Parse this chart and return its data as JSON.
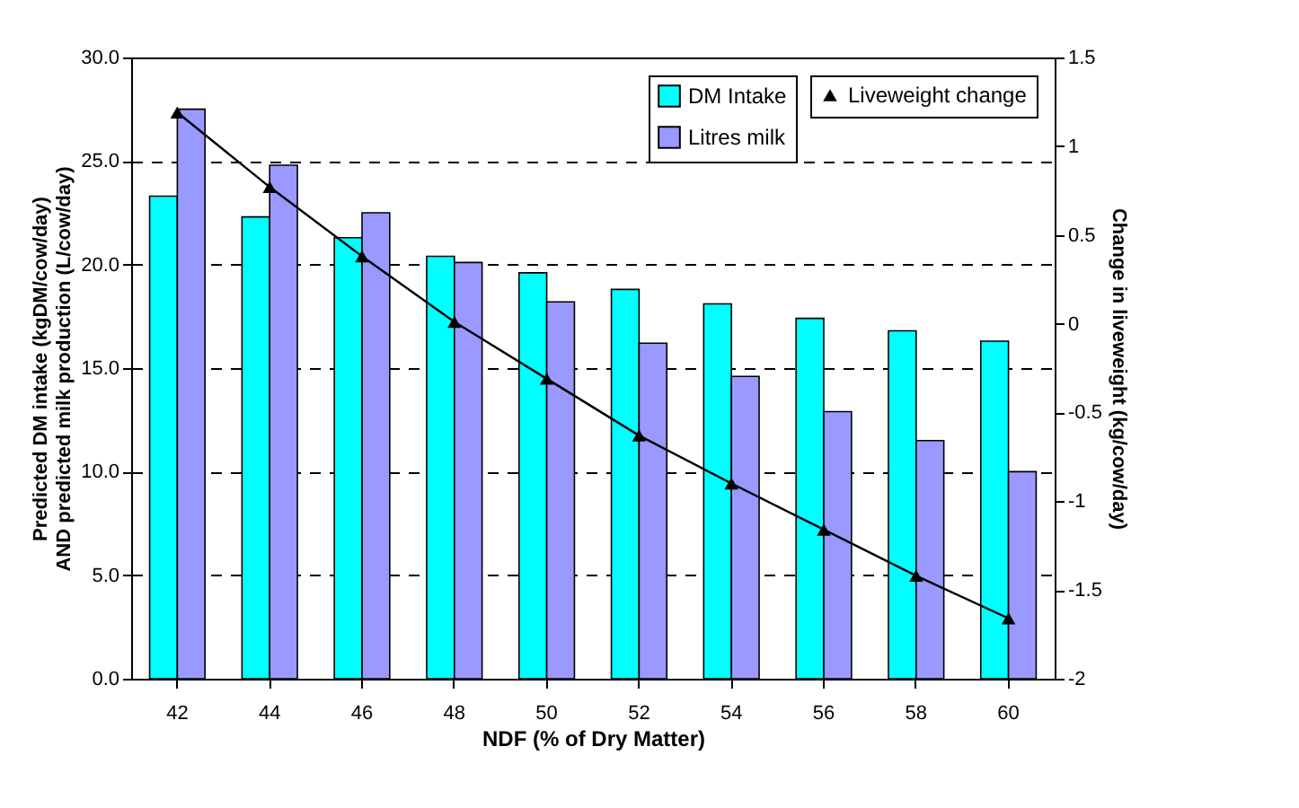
{
  "chart_data": {
    "type": "bar",
    "xlabel": "NDF (% of Dry Matter)",
    "ylabel": "Predicted DM intake (kgDM/cow/day)\nAND predicted milk production (L/cow/day)",
    "y2label": "Change in liveweight (kg/cow/day)",
    "categories": [
      "42",
      "44",
      "46",
      "48",
      "50",
      "52",
      "54",
      "56",
      "58",
      "60"
    ],
    "series": [
      {
        "name": "DM Intake",
        "color": "#00ffff",
        "values": [
          23.3,
          22.3,
          21.3,
          20.4,
          19.6,
          18.8,
          18.1,
          17.4,
          16.8,
          16.3
        ]
      },
      {
        "name": "Litres milk",
        "color": "#9999ff",
        "values": [
          27.5,
          24.8,
          22.5,
          20.1,
          18.2,
          16.2,
          14.6,
          12.9,
          11.5,
          10.0
        ]
      },
      {
        "name": "Liveweight change",
        "type": "line",
        "axis": "y2",
        "color": "#000000",
        "marker": "triangle",
        "values": [
          1.19,
          0.77,
          0.38,
          0.01,
          -0.31,
          -0.63,
          -0.9,
          -1.16,
          -1.42,
          -1.66
        ]
      }
    ],
    "ylim": [
      0,
      30
    ],
    "yticks": [
      {
        "value": 0,
        "label": "0.0"
      },
      {
        "value": 5,
        "label": "5.0"
      },
      {
        "value": 10,
        "label": "10.0"
      },
      {
        "value": 15,
        "label": "15.0"
      },
      {
        "value": 20,
        "label": "20.0"
      },
      {
        "value": 25,
        "label": "25.0"
      },
      {
        "value": 30,
        "label": "30.0"
      }
    ],
    "y2lim": [
      -2,
      1.5
    ],
    "y2ticks": [
      1.5,
      1,
      0.5,
      0,
      -0.5,
      -1,
      -1.5,
      -2
    ],
    "grid": "y",
    "legend": "top right"
  }
}
